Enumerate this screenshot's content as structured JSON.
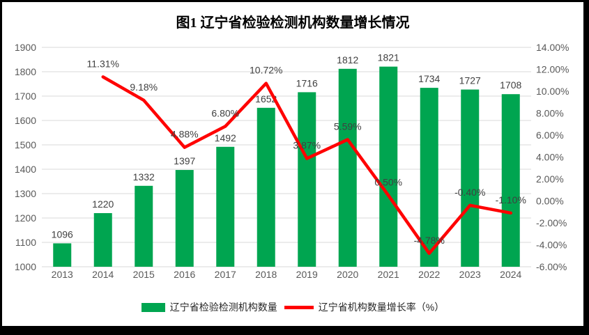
{
  "chart_data": {
    "type": "combo",
    "title": "图1 辽宁省检验检测机构数量增长情况",
    "categories": [
      "2013",
      "2014",
      "2015",
      "2016",
      "2017",
      "2018",
      "2019",
      "2020",
      "2021",
      "2022",
      "2023",
      "2024"
    ],
    "series": [
      {
        "name": "辽宁省检验检测机构数量",
        "type": "bar",
        "axis": "left",
        "color": "#00A550",
        "values": [
          1096,
          1220,
          1332,
          1397,
          1492,
          1652,
          1716,
          1812,
          1821,
          1734,
          1727,
          1708
        ],
        "labels": [
          "1096",
          "1220",
          "1332",
          "1397",
          "1492",
          "1652",
          "1716",
          "1812",
          "1821",
          "1734",
          "1727",
          "1708"
        ]
      },
      {
        "name": "辽宁省机构数量增长率（%）",
        "type": "line",
        "axis": "right",
        "color": "#FF0000",
        "values": [
          null,
          11.31,
          9.18,
          4.88,
          6.8,
          10.72,
          3.87,
          5.59,
          0.5,
          -4.78,
          -0.4,
          -1.1
        ],
        "labels": [
          null,
          "11.31%",
          "9.18%",
          "4.88%",
          "6.80%",
          "10.72%",
          "3.87%",
          "5.59%",
          "0.50%",
          "-4.78%",
          "-0.40%",
          "-1.10%"
        ]
      }
    ],
    "left_axis": {
      "min": 1000,
      "max": 1900,
      "step": 100,
      "ticks": [
        "1900",
        "1800",
        "1700",
        "1600",
        "1500",
        "1400",
        "1300",
        "1200",
        "1100",
        "1000"
      ]
    },
    "right_axis": {
      "min": -6,
      "max": 14,
      "step": 2,
      "ticks": [
        "14.00%",
        "12.00%",
        "10.00%",
        "8.00%",
        "6.00%",
        "4.00%",
        "2.00%",
        "0.00%",
        "-2.00%",
        "-4.00%",
        "-6.00%"
      ]
    },
    "grid": true,
    "legend_position": "bottom",
    "colors": {
      "grid": "#D9D9D9",
      "axis_text": "#595959",
      "data_label": "#404040",
      "background": "#FFFFFF",
      "frame": "#000000"
    }
  }
}
